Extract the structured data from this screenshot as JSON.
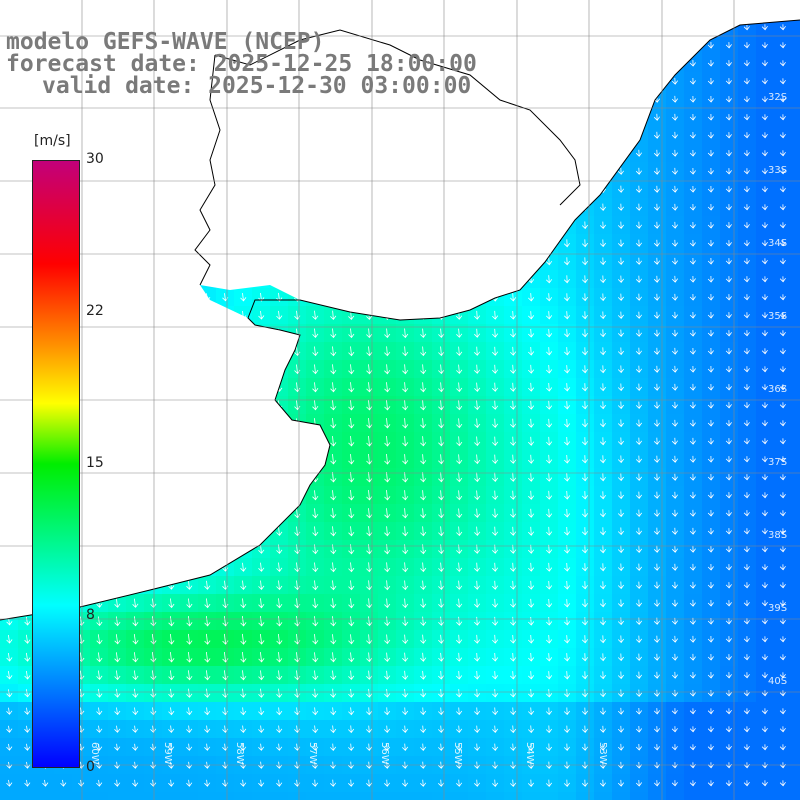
{
  "title": {
    "line1": "modelo GEFS-WAVE (NCEP)",
    "line2": "forecast date: 2025-12-25 18:00:00",
    "line3": "valid date: 2025-12-30 03:00:00"
  },
  "colorbar": {
    "unit": "[m/s]",
    "ticks": [
      "30",
      "22",
      "15",
      "8",
      "0"
    ],
    "min": 0,
    "max": 30,
    "colors": [
      "#0000ff",
      "#00ffff",
      "#00ee00",
      "#ffff00",
      "#ff8c00",
      "#ff0000",
      "#c2007a"
    ]
  },
  "map": {
    "lat_labels": [
      "32S",
      "33S",
      "34S",
      "35S",
      "36S",
      "37S",
      "38S",
      "39S",
      "40S"
    ],
    "lon_labels": [
      "60W",
      "59W",
      "58W",
      "57W",
      "56W",
      "55W",
      "54W",
      "53W"
    ],
    "wind_direction": "from north-northeast (arrows pointing south-southwest)"
  }
}
